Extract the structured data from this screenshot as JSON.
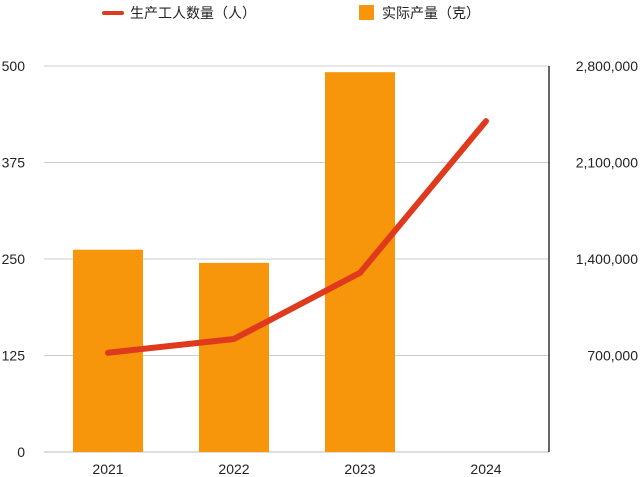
{
  "chart_data": {
    "type": "bar",
    "categories": [
      "2021",
      "2022",
      "2023",
      "2024"
    ],
    "series": [
      {
        "name": "实际产量（克）",
        "type": "bar",
        "axis": "left",
        "color": "#F7960A",
        "values": [
          262,
          245,
          492,
          null
        ]
      },
      {
        "name": "生产工人数量（人）",
        "type": "line",
        "axis": "right",
        "color": "#E03A1E",
        "values": [
          720000,
          820000,
          1300000,
          2400000
        ]
      }
    ],
    "y_left": {
      "range": [
        0,
        500
      ],
      "ticks": [
        0,
        125,
        250,
        375,
        500
      ],
      "tick_labels": [
        "0",
        "125",
        "250",
        "375",
        "500"
      ]
    },
    "y_right": {
      "range": [
        0,
        2800000
      ],
      "ticks": [
        700000,
        1400000,
        2100000,
        2800000
      ],
      "tick_labels": [
        "700,000",
        "1,400,000",
        "2,100,000",
        "2,800,000"
      ]
    },
    "grid": true,
    "legend": "top",
    "title": "",
    "xlabel": "",
    "ylabel": ""
  }
}
